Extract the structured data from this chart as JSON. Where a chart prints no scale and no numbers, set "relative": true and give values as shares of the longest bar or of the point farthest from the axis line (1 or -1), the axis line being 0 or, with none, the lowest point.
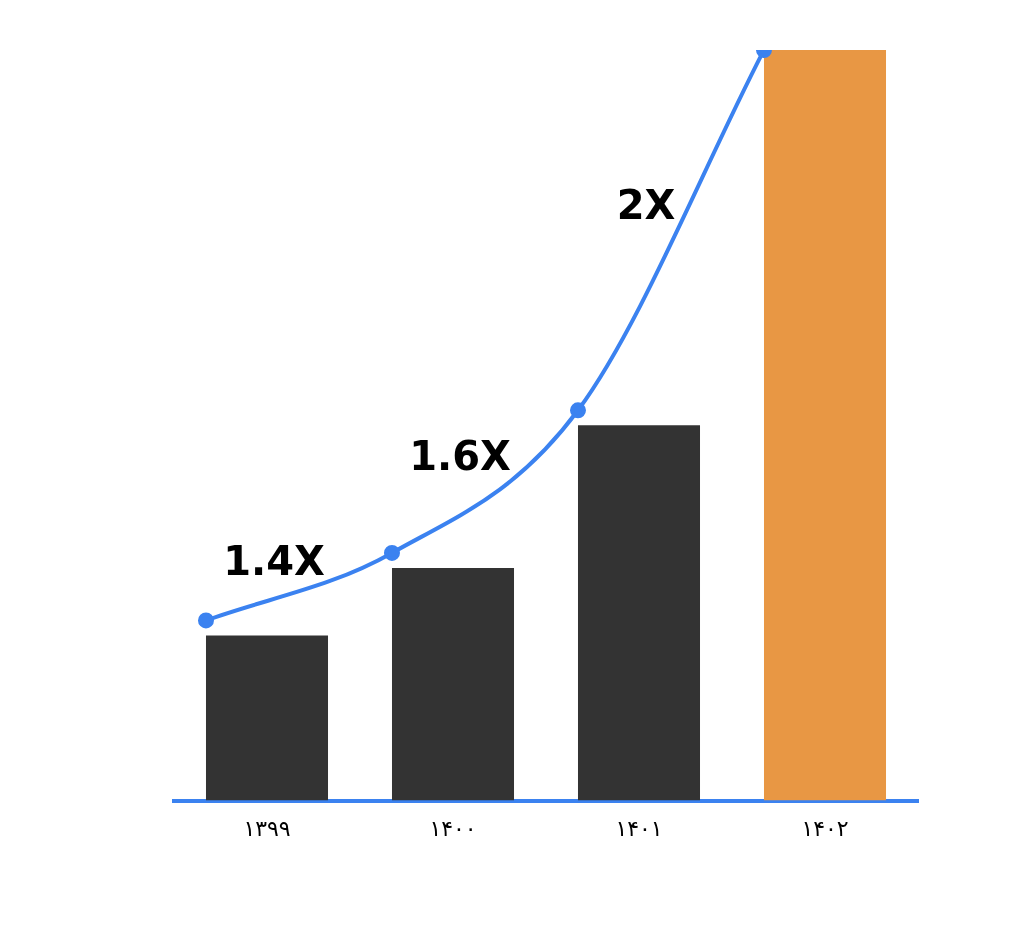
{
  "chart_data": {
    "type": "bar",
    "relative": true,
    "legend": false,
    "categories": [
      "۱۳۹۹",
      "۱۴۰۰",
      "۱۴۰۱",
      "۱۴۰۲"
    ],
    "series": [
      {
        "colors": [
          "#333333",
          "#333333",
          "#333333",
          "#e89744"
        ],
        "values": [
          0.22,
          0.31,
          0.5,
          1
        ]
      },
      {
        "type": "line",
        "color": "#3b82f0",
        "marker": "circle",
        "values": [
          0.24,
          0.33,
          0.52,
          1
        ]
      }
    ],
    "annotations": [
      "1.4X",
      "1.6X",
      "2X"
    ]
  }
}
